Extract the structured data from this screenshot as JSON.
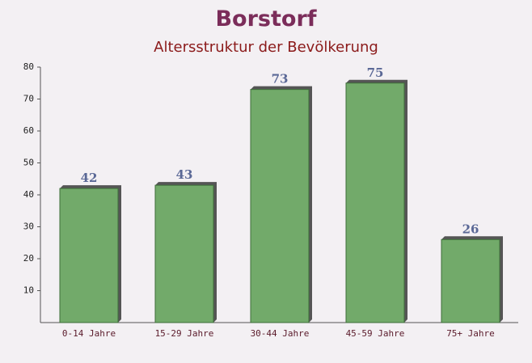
{
  "chart_data": {
    "type": "bar",
    "title": "Borstorf",
    "subtitle": "Altersstruktur der Bevölkerung",
    "categories": [
      "0-14 Jahre",
      "15-29 Jahre",
      "30-44 Jahre",
      "45-59 Jahre",
      "75+ Jahre"
    ],
    "values": [
      42,
      43,
      73,
      75,
      26
    ],
    "color": "#6aa562",
    "ylim": [
      0,
      80
    ],
    "yticks": [
      10,
      20,
      30,
      40,
      50,
      60,
      70,
      80
    ],
    "grid": false
  }
}
